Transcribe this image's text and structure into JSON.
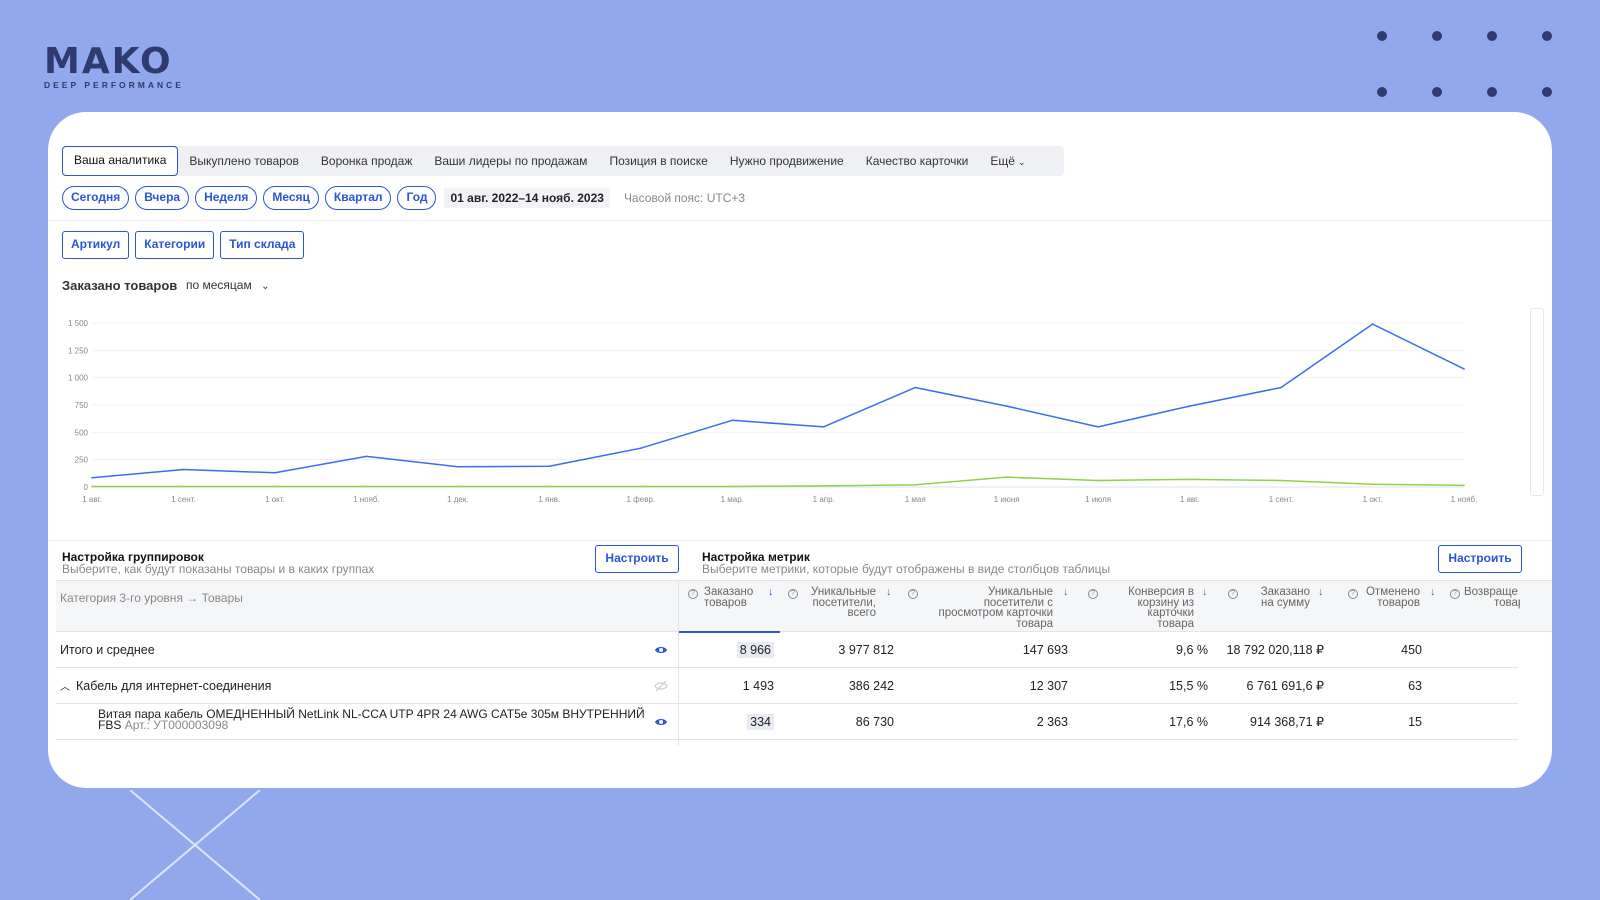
{
  "brand": {
    "name": "MAKO",
    "tagline": "DEEP PERFORMANCE"
  },
  "tabs": [
    {
      "label": "Ваша аналитика",
      "active": true
    },
    {
      "label": "Выкуплено товаров"
    },
    {
      "label": "Воронка продаж"
    },
    {
      "label": "Ваши лидеры по продажам"
    },
    {
      "label": "Позиция в поиске"
    },
    {
      "label": "Нужно продвижение"
    },
    {
      "label": "Качество карточки"
    },
    {
      "label": "Ещё"
    }
  ],
  "periods": [
    "Сегодня",
    "Вчера",
    "Неделя",
    "Месяц",
    "Квартал",
    "Год"
  ],
  "date_range": "01 авг. 2022–14 нояб. 2023",
  "timezone": "Часовой пояс: UTC+3",
  "filters": [
    "Артикул",
    "Категории",
    "Тип склада"
  ],
  "chart_header": {
    "title": "Заказано товаров",
    "granularity": "по месяцам"
  },
  "chart_data": {
    "type": "line",
    "categories": [
      "1 авг.",
      "1 сент.",
      "1 окт.",
      "1 нояб.",
      "1 дек.",
      "1 янв.",
      "1 февр.",
      "1 мар.",
      "1 апр.",
      "1 мая",
      "1 июня",
      "1 июля",
      "1 авг.",
      "1 сент.",
      "1 окт.",
      "1 нояб."
    ],
    "series": [
      {
        "values": [
          85,
          160,
          130,
          280,
          185,
          190,
          355,
          610,
          550,
          910,
          740,
          550,
          740,
          910,
          1490,
          1080
        ],
        "color": "#3b6df0"
      },
      {
        "values": [
          5,
          5,
          5,
          5,
          5,
          5,
          5,
          5,
          10,
          20,
          90,
          60,
          70,
          60,
          25,
          15
        ],
        "color": "#8ed14a"
      }
    ],
    "yticks": [
      0,
      250,
      500,
      750,
      1000,
      1250,
      1500
    ],
    "yticklabels": [
      "0",
      "250",
      "500",
      "750",
      "1 000",
      "1 250",
      "1 500"
    ],
    "ylim": [
      0,
      1500
    ],
    "grid": true
  },
  "grouping": {
    "title": "Настройка группировок",
    "subtitle": "Выберите, как будут показаны товары и в каких группах",
    "button": "Настроить"
  },
  "metrics": {
    "title": "Настройка метрик",
    "subtitle": "Выберите метрики, которые будут отображены в виде столбцов таблицы",
    "button": "Настроить"
  },
  "table": {
    "first_header": "Категория 3-го уровня → Товары",
    "columns": [
      {
        "l1": "Заказано",
        "l2": "товаров",
        "l3": "",
        "l4": ""
      },
      {
        "l1": "Уникальные",
        "l2": "посетители,",
        "l3": "всего",
        "l4": ""
      },
      {
        "l1": "Уникальные",
        "l2": "посетители с",
        "l3": "просмотром карточки",
        "l4": "товара"
      },
      {
        "l1": "Конверсия в",
        "l2": "корзину из",
        "l3": "карточки",
        "l4": "товара"
      },
      {
        "l1": "Заказано",
        "l2": "на сумму",
        "l3": "",
        "l4": ""
      },
      {
        "l1": "Отменено",
        "l2": "товаров",
        "l3": "",
        "l4": ""
      },
      {
        "l1": "Возвраще",
        "l2": "товар",
        "l3": "",
        "l4": ""
      }
    ],
    "rows": [
      {
        "name": "Итого и среднее",
        "values": [
          "8 966",
          "3 977 812",
          "147 693",
          "9,6 %",
          "18 792 020,118 ₽",
          "450"
        ]
      },
      {
        "name": "Кабель для интернет-соединения",
        "values": [
          "1 493",
          "386 242",
          "12 307",
          "15,5 %",
          "6 761 691,6 ₽",
          "63"
        ]
      },
      {
        "name": "Витая пара кабель ОМЕДНЕННЫЙ NetLink NL-CCA UTP 4PR 24 AWG CAT5e 305м ВНУТРЕННИЙ FBS",
        "article": "Арт.: УТ000003098",
        "values": [
          "334",
          "86 730",
          "2 363",
          "17,6 %",
          "914 368,71 ₽",
          "15"
        ]
      }
    ]
  }
}
